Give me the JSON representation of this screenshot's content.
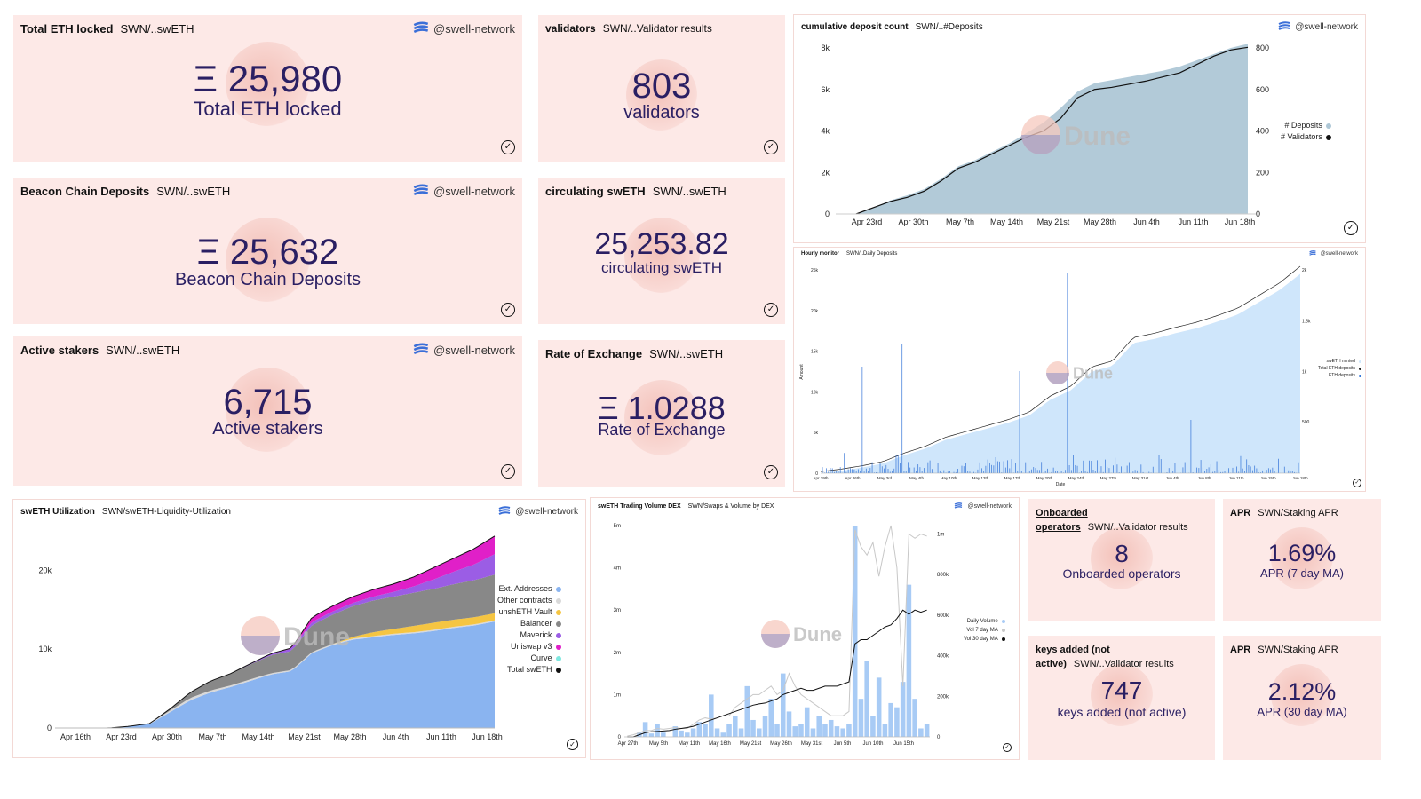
{
  "brand": "@swell-network",
  "counters": [
    {
      "title": "Total ETH locked",
      "query": "SWN/..swETH",
      "value": "Ξ 25,980",
      "label": "Total ETH locked",
      "brand": true
    },
    {
      "title": "Beacon Chain Deposits",
      "query": "SWN/..swETH",
      "value": "Ξ 25,632",
      "label": "Beacon Chain Deposits",
      "brand": true
    },
    {
      "title": "Active stakers",
      "query": "SWN/..swETH",
      "value": "6,715",
      "label": "Active stakers",
      "brand": true
    },
    {
      "title": "validators",
      "query": "SWN/..Validator results",
      "value": "803",
      "label": "validators"
    },
    {
      "title": "circulating swETH",
      "query": "SWN/..swETH",
      "value": "25,253.82",
      "label": "circulating swETH"
    },
    {
      "title": "Rate of Exchange",
      "query": "SWN/..swETH",
      "value": "Ξ 1.0288",
      "label": "Rate of Exchange"
    },
    {
      "title": "Onboarded operators",
      "query": "SWN/..Validator results",
      "value": "8",
      "label": "Onboarded operators"
    },
    {
      "title": "keys added (not active)",
      "query": "SWN/..Validator results",
      "value": "747",
      "label": "keys added (not active)"
    },
    {
      "title": "APR",
      "query": "SWN/Staking APR",
      "value": "1.69%",
      "label": "APR (7 day MA)"
    },
    {
      "title": "APR",
      "query": "SWN/Staking APR",
      "value": "2.12%",
      "label": "APR (30 day MA)"
    }
  ],
  "watermark": "Dune",
  "chart_data": [
    {
      "type": "area",
      "title": "cumulative deposit count",
      "query": "SWN/..#Deposits",
      "x_ticks": [
        "Apr 23rd",
        "Apr 30th",
        "May 7th",
        "May 14th",
        "May 21st",
        "May 28th",
        "Jun 4th",
        "Jun 11th",
        "Jun 18th"
      ],
      "y_ticks": [
        "0",
        "2k",
        "4k",
        "6k",
        "8k"
      ],
      "y2_ticks": [
        "0",
        "200",
        "400",
        "600",
        "800"
      ],
      "legend": [
        "# Deposits",
        "# Validators"
      ],
      "colors": {
        "deposits": "#aec7d6",
        "validators": "#111111"
      },
      "series": [
        {
          "name": "# Deposits",
          "values": [
            0,
            300,
            650,
            900,
            1200,
            1700,
            2300,
            2600,
            3000,
            3400,
            3900,
            4400,
            5100,
            5900,
            6300,
            6450,
            6600,
            6750,
            6900,
            7100,
            7400,
            7700,
            8000,
            8200
          ]
        },
        {
          "name": "# Validators",
          "values": [
            0,
            30,
            60,
            80,
            110,
            160,
            220,
            250,
            290,
            330,
            370,
            400,
            460,
            560,
            600,
            610,
            625,
            640,
            660,
            680,
            720,
            760,
            790,
            803
          ]
        }
      ]
    },
    {
      "type": "area",
      "title": "Hourly monitor",
      "query": "SWN/..Daily Deposits",
      "xlabel": "Date",
      "ylabel": "Amount",
      "x_ticks": [
        "Apr 19th",
        "Apr 26th",
        "May 3rd",
        "May 4th",
        "May 10th",
        "May 13th",
        "May 17th",
        "May 20th",
        "May 24th",
        "May 27th",
        "May 31st",
        "Jun 4th",
        "Jun 8th",
        "Jun 11th",
        "Jun 15th",
        "Jun 18th"
      ],
      "y_ticks": [
        "0",
        "5k",
        "10k",
        "15k",
        "20k",
        "25k"
      ],
      "y2_ticks": [
        "500",
        "1k",
        "1.5k",
        "2k"
      ],
      "legend": [
        "swETH minted",
        "Total ETH deposits",
        "ETH deposits"
      ],
      "colors": {
        "area": "#cfe6fb",
        "line": "#222222",
        "bars": "#2d6fd6"
      }
    },
    {
      "type": "area",
      "title": "swETH Utilization",
      "query": "SWN/swETH-Liquidity-Utilization",
      "x_ticks": [
        "Apr 16th",
        "Apr 23rd",
        "Apr 30th",
        "May 7th",
        "May 14th",
        "May 21st",
        "May 28th",
        "Jun 4th",
        "Jun 11th",
        "Jun 18th"
      ],
      "y_ticks": [
        "0",
        "10k",
        "20k"
      ],
      "legend": [
        "Ext. Addresses",
        "Other contracts",
        "unshETH Vault",
        "Balancer",
        "Maverick",
        "Uniswap v3",
        "Curve",
        "Total swETH"
      ],
      "colors": {
        "Ext. Addresses": "#8ab4f0",
        "Other contracts": "#d9d9d9",
        "unshETH Vault": "#f5c542",
        "Balancer": "#888888",
        "Maverick": "#9b5de5",
        "Uniswap v3": "#e020c8",
        "Curve": "#7ee8e0",
        "Total swETH": "#111111"
      }
    },
    {
      "type": "bar",
      "title": "swETH Trading Volume DEX",
      "query": "SWN/Swaps & Volume by DEX",
      "x_ticks": [
        "Apr 27th",
        "May 5th",
        "May 11th",
        "May 16th",
        "May 21st",
        "May 26th",
        "May 31st",
        "Jun 5th",
        "Jun 10th",
        "Jun 15th"
      ],
      "y_ticks": [
        "0",
        "1m",
        "2m",
        "3m",
        "4m",
        "5m"
      ],
      "y2_ticks": [
        "0",
        "200k",
        "400k",
        "600k",
        "800k",
        "1m"
      ],
      "legend": [
        "Daily Volume",
        "Vol 7 day MA",
        "Vol 30 day MA"
      ],
      "colors": {
        "Daily Volume": "#a8cbf5",
        "Vol 7 day MA": "#c8c8c8",
        "Vol 30 day MA": "#111111"
      }
    }
  ]
}
